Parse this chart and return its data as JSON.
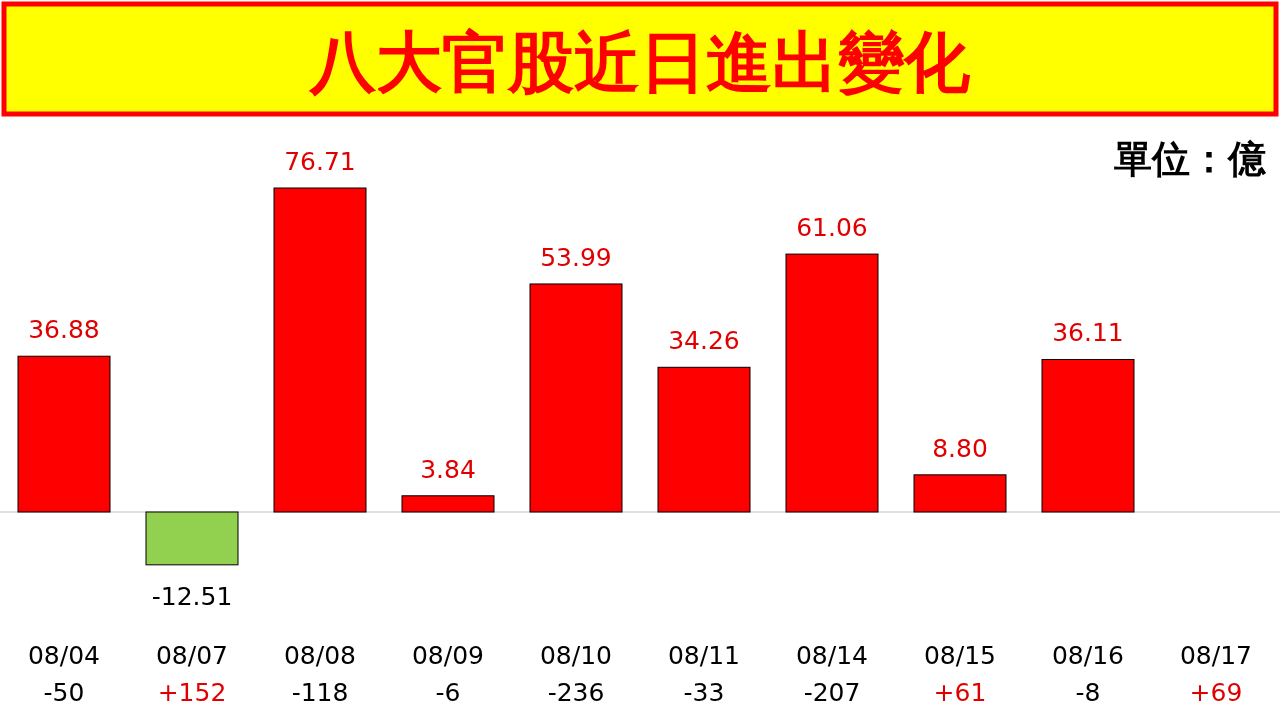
{
  "chart_data": {
    "type": "bar",
    "title": "八大官股近日進出變化",
    "categories": [
      "08/04",
      "08/07",
      "08/08",
      "08/09",
      "08/10",
      "08/11",
      "08/14",
      "08/15",
      "08/16",
      "08/17"
    ],
    "values": [
      36.88,
      -12.51,
      76.71,
      3.84,
      53.99,
      34.26,
      61.06,
      8.8,
      36.11,
      null
    ],
    "colors": [
      "#ff0000",
      "#92d050",
      "#ff0000",
      "#ff0000",
      "#ff0000",
      "#ff0000",
      "#ff0000",
      "#ff0000",
      "#ff0000",
      null
    ],
    "value_labels": [
      "36.88",
      "-12.51",
      "76.71",
      "3.84",
      "53.99",
      "34.26",
      "61.06",
      "8.80",
      "36.11",
      null
    ],
    "annotations": [
      "單位：億",
      "-50",
      "+152",
      "-118",
      "-6",
      "-236",
      "-33",
      "-207",
      "+61",
      "-8",
      "+69"
    ]
  }
}
